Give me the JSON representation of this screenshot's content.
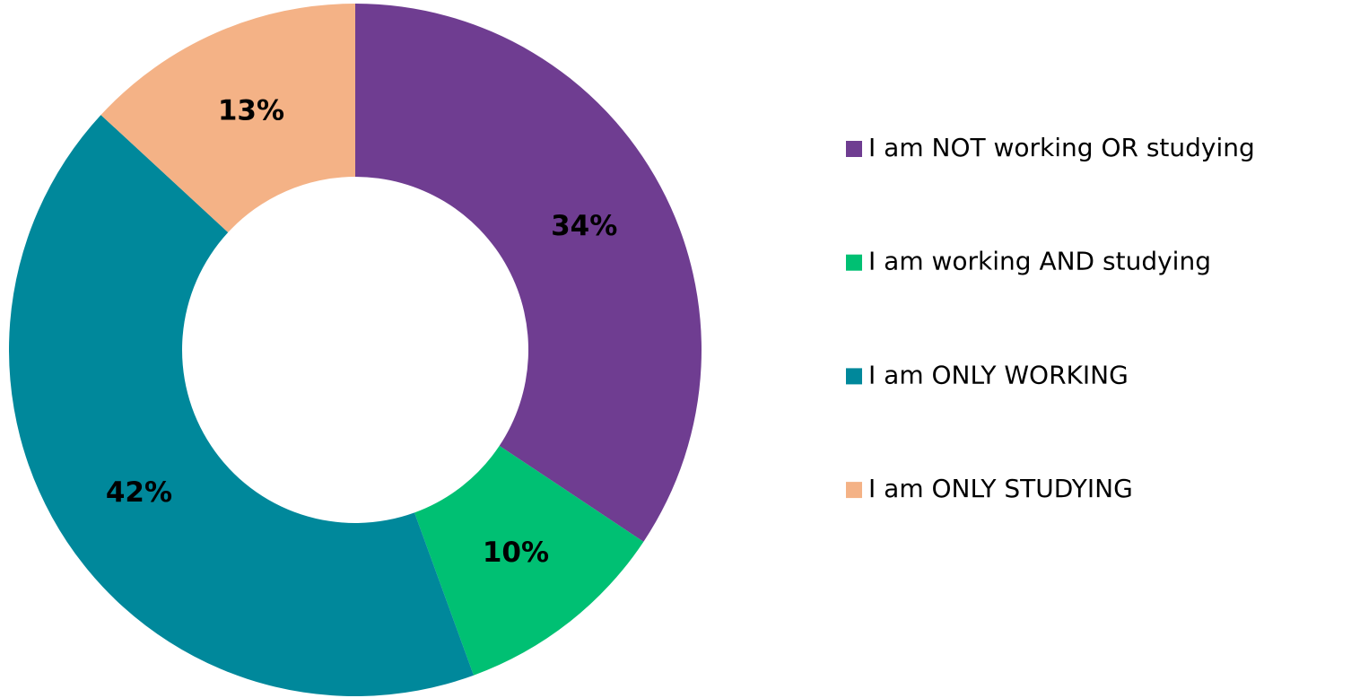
{
  "chart_data": {
    "type": "donut",
    "categories": [
      "I am NOT working OR studying",
      "I am working AND studying",
      "I am ONLY WORKING",
      "I am ONLY STUDYING"
    ],
    "values": [
      34,
      10,
      42,
      13
    ],
    "value_labels": [
      "34%",
      "10%",
      "42%",
      "13%"
    ],
    "colors": [
      "#6f3d91",
      "#00c073",
      "#00889b",
      "#f4b286"
    ],
    "legend": "right"
  }
}
